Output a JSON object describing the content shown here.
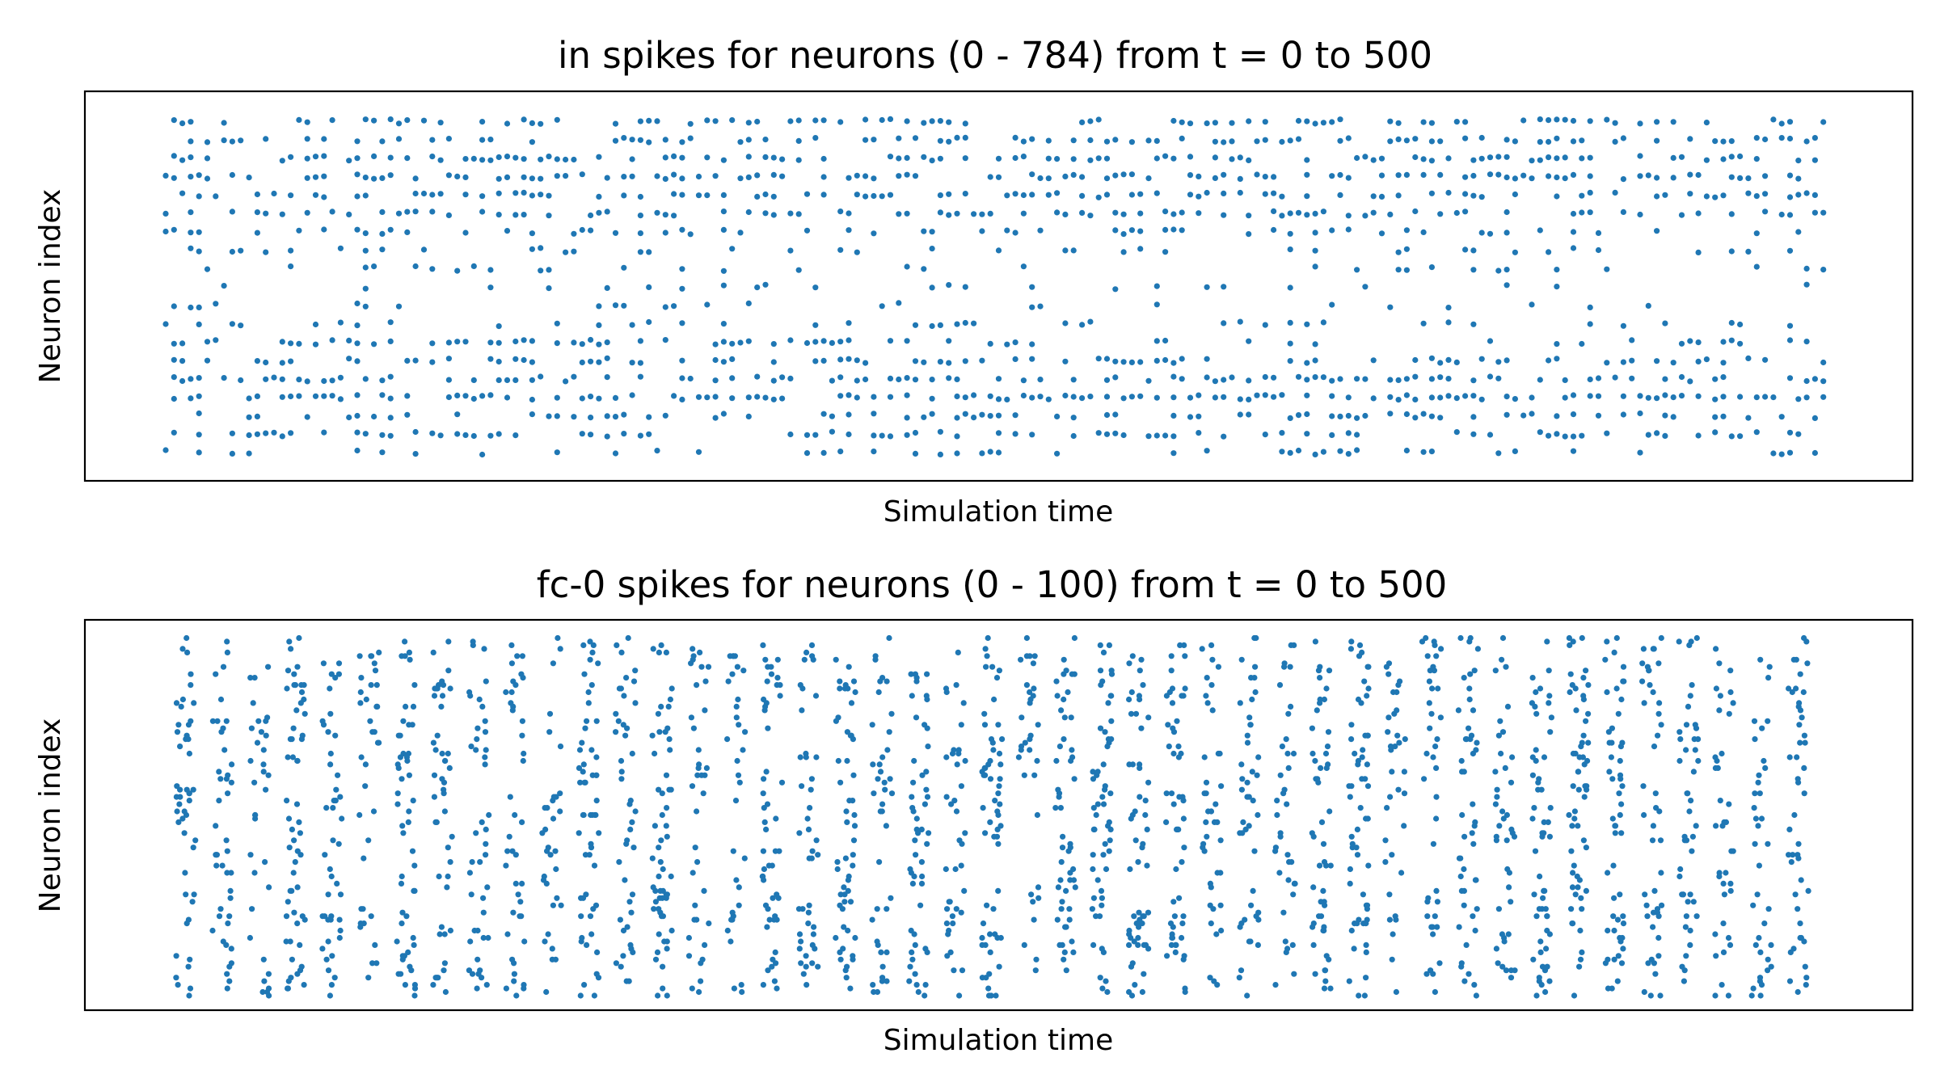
{
  "colors": {
    "marker": "#1f77b4",
    "frame": "#000000",
    "background": "#ffffff"
  },
  "chart_data": [
    {
      "type": "scatter",
      "title": "in spikes for neurons (0 - 784) from t = 0 to 500",
      "xlabel": "Simulation time",
      "ylabel": "Neuron index",
      "xlim": [
        0,
        500
      ],
      "ylim": [
        0,
        784
      ],
      "xticks": [],
      "yticks": [],
      "grid": false,
      "legend": "none",
      "spikes": {
        "t_start": 0,
        "t_end": 500,
        "neuron_rows": [
          30,
          70,
          110,
          150,
          190,
          230,
          270,
          310,
          350,
          390,
          430,
          470,
          510,
          550,
          590,
          630,
          670,
          710,
          750
        ],
        "row_rates": [
          0.25,
          0.38,
          0.45,
          0.5,
          0.5,
          0.4,
          0.28,
          0.18,
          0.12,
          0.1,
          0.12,
          0.18,
          0.3,
          0.42,
          0.5,
          0.55,
          0.5,
          0.45,
          0.38
        ]
      }
    },
    {
      "type": "scatter",
      "title": "fc-0 spikes for neurons (0 - 100) from t = 0 to 500",
      "xlabel": "Simulation time",
      "ylabel": "Neuron index",
      "xlim": [
        0,
        500
      ],
      "ylim": [
        0,
        100
      ],
      "xticks": [],
      "yticks": [],
      "grid": false,
      "legend": "none",
      "spikes": {
        "t_start": 0,
        "t_end": 500,
        "neurons": 100,
        "burst_period": 11,
        "burst_fraction": 0.55
      }
    }
  ]
}
